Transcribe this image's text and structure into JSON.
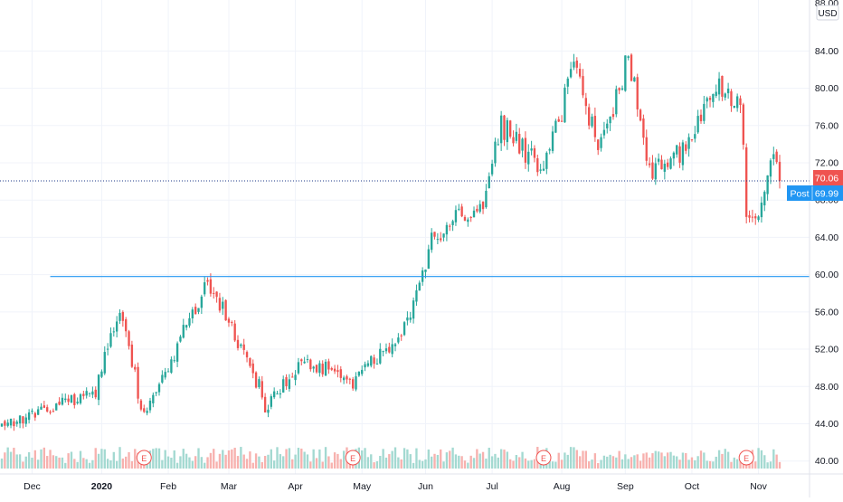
{
  "colors": {
    "up": "#26a69a",
    "down": "#ef5350",
    "vol_up": "#a3d9d1",
    "vol_down": "#f7b1ae",
    "support_line": "#2196f3",
    "last_line": "#1e3a8a",
    "last_badge": "#ef5350",
    "post_badge": "#2196f3",
    "grid": "#f0f3fa",
    "axis_text": "#131722"
  },
  "axis": {
    "currency": "USD",
    "top_partial_label": "88.00"
  },
  "price_labels": {
    "last": "70.06",
    "post_tag": "Post",
    "post_value": "69.99"
  },
  "chart_data": {
    "type": "candlestick",
    "title": "",
    "ylim": [
      39,
      88.5
    ],
    "yticks": [
      40,
      44,
      48,
      52,
      56,
      60,
      64,
      68,
      72,
      76,
      80,
      84
    ],
    "ytick_labels": [
      "40.00",
      "44.00",
      "48.00",
      "52.00",
      "56.00",
      "60.00",
      "64.00",
      "68.00",
      "72.00",
      "76.00",
      "80.00",
      "84.00"
    ],
    "xtick_labels": [
      "Dec",
      "2020",
      "Feb",
      "Mar",
      "Apr",
      "May",
      "Jun",
      "Jul",
      "Aug",
      "Sep",
      "Oct",
      "Nov"
    ],
    "key_prices": [
      {
        "date": "2019-11-25",
        "close": 44.0
      },
      {
        "date": "2019-12-31",
        "close": 47.5
      },
      {
        "date": "2020-01-10",
        "close": 56.5
      },
      {
        "date": "2020-01-22",
        "close": 44.5
      },
      {
        "date": "2020-02-20",
        "close": 59.5
      },
      {
        "date": "2020-03-16",
        "close": 48.0
      },
      {
        "date": "2020-03-18",
        "close": 45.5
      },
      {
        "date": "2020-04-06",
        "close": 51.0
      },
      {
        "date": "2020-04-28",
        "close": 48.5
      },
      {
        "date": "2020-05-22",
        "close": 54.5
      },
      {
        "date": "2020-06-03",
        "close": 63.5
      },
      {
        "date": "2020-06-12",
        "close": 66.0
      },
      {
        "date": "2020-06-26",
        "close": 67.5
      },
      {
        "date": "2020-07-06",
        "close": 76.0
      },
      {
        "date": "2020-07-24",
        "close": 71.0
      },
      {
        "date": "2020-08-07",
        "close": 82.0
      },
      {
        "date": "2020-08-20",
        "close": 73.5
      },
      {
        "date": "2020-09-02",
        "close": 83.5
      },
      {
        "date": "2020-09-11",
        "close": 71.0
      },
      {
        "date": "2020-09-25",
        "close": 73.0
      },
      {
        "date": "2020-10-12",
        "close": 80.0
      },
      {
        "date": "2020-10-23",
        "close": 79.0
      },
      {
        "date": "2020-10-27",
        "close": 67.0
      },
      {
        "date": "2020-11-02",
        "close": 66.5
      },
      {
        "date": "2020-11-07",
        "close": 73.0
      },
      {
        "date": "2020-11-11",
        "close": 70.06
      }
    ],
    "horizontal_line": {
      "value": 59.8,
      "from_date": "2019-12-10"
    },
    "last_price": 70.06,
    "post_market_price": 69.99,
    "earnings_markers": [
      {
        "date": "2020-01-22",
        "label": "E"
      },
      {
        "date": "2020-04-28",
        "label": "E"
      },
      {
        "date": "2020-07-24",
        "label": "E"
      },
      {
        "date": "2020-10-27",
        "label": "E"
      }
    ]
  }
}
